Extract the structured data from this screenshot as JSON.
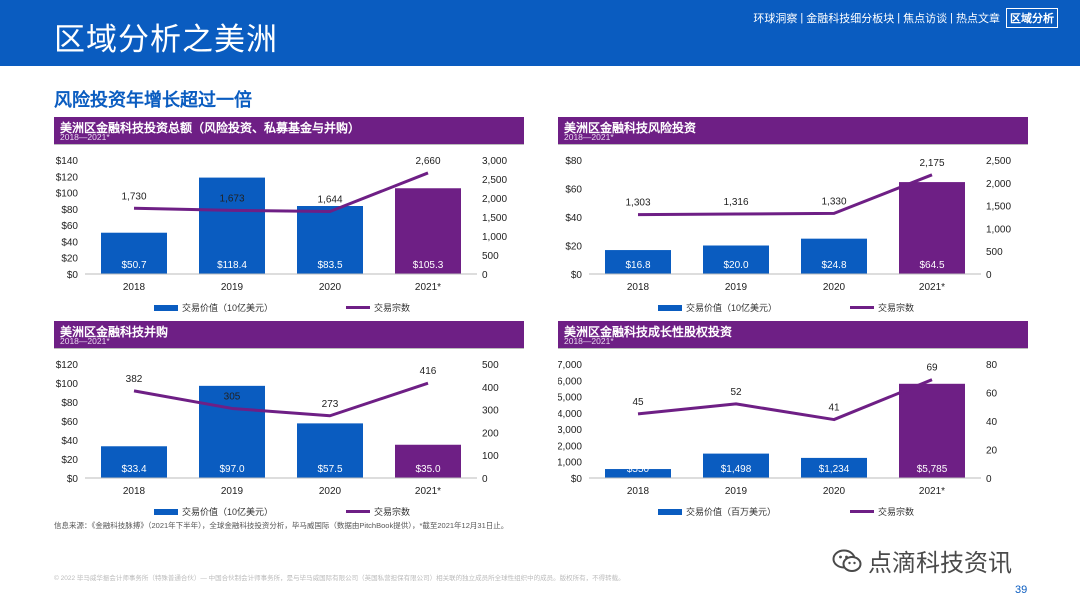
{
  "header": {
    "title": "区域分析之美洲",
    "nav": [
      {
        "label": "环球洞察",
        "active": false
      },
      {
        "label": "金融科技细分板块",
        "active": false
      },
      {
        "label": "焦点访谈",
        "active": false
      },
      {
        "label": "热点文章",
        "active": false
      },
      {
        "label": "区域分析",
        "active": true
      }
    ]
  },
  "subtitle": "风险投资年增长超过一倍",
  "legend_labels": {
    "value_bn": "交易价值（10亿美元）",
    "value_mn": "交易价值（百万美元）",
    "count": "交易宗数"
  },
  "chart_data": [
    {
      "type": "bar",
      "title": "美洲区金融科技投资总额（风险投资、私募基金与并购）",
      "subtitle": "2018—2021*",
      "categories": [
        "2018",
        "2019",
        "2020",
        "2021*"
      ],
      "series": [
        {
          "name": "交易价值（10亿美元）",
          "type": "bar",
          "values": [
            50.7,
            118.4,
            83.5,
            105.3
          ],
          "labels": [
            "$50.7",
            "$118.4",
            "$83.5",
            "$105.3"
          ]
        },
        {
          "name": "交易宗数",
          "type": "line",
          "values": [
            1730,
            1673,
            1644,
            2660
          ],
          "labels": [
            "1,730",
            "1,673",
            "1,644",
            "2,660"
          ]
        }
      ],
      "left_axis": {
        "ylim": [
          0,
          140
        ],
        "ticks": [
          "$0",
          "$20",
          "$40",
          "$60",
          "$80",
          "$100",
          "$120",
          "$140"
        ]
      },
      "right_axis": {
        "ylim": [
          0,
          3000
        ],
        "ticks": [
          "0",
          "500",
          "1,000",
          "1,500",
          "2,000",
          "2,500",
          "3,000"
        ]
      },
      "bar_colors": [
        "#0a5cc0",
        "#0a5cc0",
        "#0a5cc0",
        "#6e1f85"
      ],
      "line_color": "#6e1f85",
      "legend": "bottom",
      "legend_bar_label": "交易价值（10亿美元）"
    },
    {
      "type": "bar",
      "title": "美洲区金融科技风险投资",
      "subtitle": "2018—2021*",
      "categories": [
        "2018",
        "2019",
        "2020",
        "2021*"
      ],
      "series": [
        {
          "name": "交易价值（10亿美元）",
          "type": "bar",
          "values": [
            16.8,
            20.0,
            24.8,
            64.5
          ],
          "labels": [
            "$16.8",
            "$20.0",
            "$24.8",
            "$64.5"
          ]
        },
        {
          "name": "交易宗数",
          "type": "line",
          "values": [
            1303,
            1316,
            1330,
            2175
          ],
          "labels": [
            "1,303",
            "1,316",
            "1,330",
            "2,175"
          ]
        }
      ],
      "left_axis": {
        "ylim": [
          0,
          80
        ],
        "ticks": [
          "$0",
          "$20",
          "$40",
          "$60",
          "$80"
        ]
      },
      "right_axis": {
        "ylim": [
          0,
          2500
        ],
        "ticks": [
          "0",
          "500",
          "1,000",
          "1,500",
          "2,000",
          "2,500"
        ]
      },
      "bar_colors": [
        "#0a5cc0",
        "#0a5cc0",
        "#0a5cc0",
        "#6e1f85"
      ],
      "line_color": "#6e1f85",
      "legend": "bottom",
      "legend_bar_label": "交易价值（10亿美元）"
    },
    {
      "type": "bar",
      "title": "美洲区金融科技并购",
      "subtitle": "2018—2021*",
      "categories": [
        "2018",
        "2019",
        "2020",
        "2021*"
      ],
      "series": [
        {
          "name": "交易价值（10亿美元）",
          "type": "bar",
          "values": [
            33.4,
            97.0,
            57.5,
            35.0
          ],
          "labels": [
            "$33.4",
            "$97.0",
            "$57.5",
            "$35.0"
          ]
        },
        {
          "name": "交易宗数",
          "type": "line",
          "values": [
            382,
            305,
            273,
            416
          ],
          "labels": [
            "382",
            "305",
            "273",
            "416"
          ]
        }
      ],
      "left_axis": {
        "ylim": [
          0,
          120
        ],
        "ticks": [
          "$0",
          "$20",
          "$40",
          "$60",
          "$80",
          "$100",
          "$120"
        ]
      },
      "right_axis": {
        "ylim": [
          0,
          500
        ],
        "ticks": [
          "0",
          "100",
          "200",
          "300",
          "400",
          "500"
        ]
      },
      "bar_colors": [
        "#0a5cc0",
        "#0a5cc0",
        "#0a5cc0",
        "#6e1f85"
      ],
      "line_color": "#6e1f85",
      "legend": "bottom",
      "legend_bar_label": "交易价值（10亿美元）"
    },
    {
      "type": "bar",
      "title": "美洲区金融科技成长性股权投资",
      "subtitle": "2018—2021*",
      "categories": [
        "2018",
        "2019",
        "2020",
        "2021*"
      ],
      "series": [
        {
          "name": "交易价值（百万美元）",
          "type": "bar",
          "values": [
            550,
            1498,
            1234,
            5785
          ],
          "labels": [
            "$550",
            "$1,498",
            "$1,234",
            "$5,785"
          ]
        },
        {
          "name": "交易宗数",
          "type": "line",
          "values": [
            45,
            52,
            41,
            69
          ],
          "labels": [
            "45",
            "52",
            "41",
            "69"
          ]
        }
      ],
      "left_axis": {
        "ylim": [
          0,
          7000
        ],
        "ticks": [
          "$0",
          "$1,000",
          "$2,000",
          "$3,000",
          "$4,000",
          "$5,000",
          "$6,000",
          "$7,000"
        ]
      },
      "right_axis": {
        "ylim": [
          0,
          80
        ],
        "ticks": [
          "0",
          "20",
          "40",
          "60",
          "80"
        ]
      },
      "bar_colors": [
        "#0a5cc0",
        "#0a5cc0",
        "#0a5cc0",
        "#6e1f85"
      ],
      "line_color": "#6e1f85",
      "legend": "bottom",
      "legend_bar_label": "交易价值（百万美元）"
    }
  ],
  "footer": {
    "source": "信息来源：《金融科技脉搏》（2021年下半年），全球金融科技投资分析，毕马威国际（数据由PitchBook提供），*截至2021年12月31日止。",
    "copyright": "© 2022 毕马威华振会计师事务所（特殊普通合伙）— 中国合伙制会计师事务所，是与毕马威国际有限公司（英国私营担保有限公司）相关联的独立成员所全球性组织中的成员。版权所有，不得转载。",
    "watermark": "点滴科技资讯",
    "page_number": "39"
  }
}
